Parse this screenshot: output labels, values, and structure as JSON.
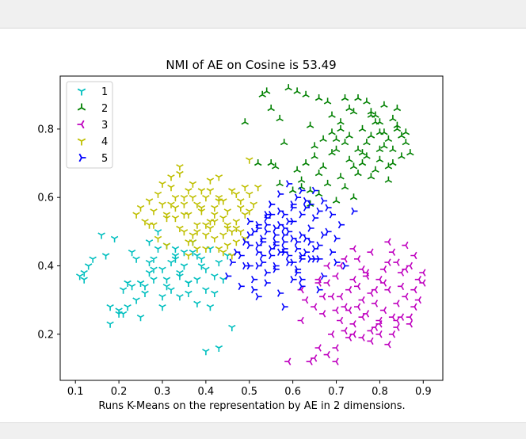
{
  "chart_data": {
    "type": "scatter",
    "title": "NMI of AE on Cosine is 53.49",
    "xlabel": "Runs K-Means on the representation by AE in 2 dimensions.",
    "ylabel": "",
    "xlim": [
      0.065,
      0.945
    ],
    "ylim": [
      0.065,
      0.955
    ],
    "xticks": [
      "0.1",
      "0.2",
      "0.3",
      "0.4",
      "0.5",
      "0.6",
      "0.7",
      "0.8",
      "0.9"
    ],
    "yticks": [
      "0.2",
      "0.4",
      "0.6",
      "0.8"
    ],
    "grid": false,
    "legend": "top-left",
    "series": [
      {
        "name": "1",
        "color": "#00bfbf",
        "marker": "tri_down",
        "x": [
          0.11,
          0.12,
          0.13,
          0.14,
          0.16,
          0.17,
          0.19,
          0.12,
          0.18,
          0.2,
          0.21,
          0.22,
          0.23,
          0.24,
          0.25,
          0.26,
          0.27,
          0.28,
          0.29,
          0.3,
          0.31,
          0.32,
          0.33,
          0.34,
          0.35,
          0.36,
          0.37,
          0.38,
          0.39,
          0.4,
          0.41,
          0.42,
          0.43,
          0.45,
          0.21,
          0.22,
          0.24,
          0.26,
          0.28,
          0.3,
          0.32,
          0.34,
          0.36,
          0.38,
          0.4,
          0.42,
          0.44,
          0.4,
          0.43,
          0.46,
          0.18,
          0.2,
          0.23,
          0.27,
          0.29,
          0.31,
          0.33,
          0.35,
          0.37,
          0.39,
          0.25,
          0.28,
          0.31,
          0.34,
          0.41,
          0.36,
          0.3,
          0.27,
          0.33,
          0.38
        ],
        "y": [
          0.37,
          0.38,
          0.4,
          0.42,
          0.49,
          0.43,
          0.48,
          0.36,
          0.23,
          0.27,
          0.26,
          0.28,
          0.44,
          0.42,
          0.25,
          0.34,
          0.47,
          0.42,
          0.45,
          0.39,
          0.36,
          0.41,
          0.43,
          0.38,
          0.4,
          0.35,
          0.44,
          0.36,
          0.42,
          0.39,
          0.45,
          0.37,
          0.41,
          0.43,
          0.33,
          0.35,
          0.3,
          0.32,
          0.36,
          0.28,
          0.33,
          0.31,
          0.35,
          0.29,
          0.33,
          0.32,
          0.36,
          0.15,
          0.16,
          0.22,
          0.28,
          0.26,
          0.34,
          0.38,
          0.5,
          0.46,
          0.42,
          0.44,
          0.47,
          0.4,
          0.35,
          0.39,
          0.34,
          0.37,
          0.28,
          0.32,
          0.31,
          0.41,
          0.45,
          0.43
        ]
      },
      {
        "name": "2",
        "color": "#008000",
        "marker": "tri_up",
        "x": [
          0.49,
          0.53,
          0.54,
          0.55,
          0.57,
          0.59,
          0.61,
          0.63,
          0.64,
          0.66,
          0.68,
          0.69,
          0.7,
          0.71,
          0.72,
          0.73,
          0.74,
          0.75,
          0.76,
          0.77,
          0.78,
          0.79,
          0.8,
          0.81,
          0.82,
          0.83,
          0.84,
          0.85,
          0.86,
          0.87,
          0.63,
          0.65,
          0.67,
          0.69,
          0.71,
          0.73,
          0.75,
          0.77,
          0.79,
          0.81,
          0.83,
          0.85,
          0.6,
          0.62,
          0.64,
          0.66,
          0.68,
          0.7,
          0.72,
          0.74,
          0.76,
          0.78,
          0.8,
          0.82,
          0.84,
          0.58,
          0.61,
          0.65,
          0.67,
          0.71,
          0.73,
          0.77,
          0.79,
          0.81,
          0.83,
          0.86,
          0.74,
          0.76,
          0.78,
          0.8,
          0.82,
          0.69,
          0.72,
          0.55,
          0.57,
          0.52,
          0.56,
          0.62,
          0.66,
          0.75,
          0.78,
          0.84,
          0.8,
          0.7,
          0.64
        ],
        "y": [
          0.82,
          0.9,
          0.91,
          0.86,
          0.83,
          0.92,
          0.91,
          0.9,
          0.81,
          0.89,
          0.88,
          0.79,
          0.77,
          0.82,
          0.89,
          0.78,
          0.85,
          0.74,
          0.8,
          0.76,
          0.84,
          0.82,
          0.71,
          0.79,
          0.77,
          0.74,
          0.8,
          0.72,
          0.76,
          0.73,
          0.7,
          0.75,
          0.69,
          0.73,
          0.66,
          0.71,
          0.67,
          0.72,
          0.68,
          0.75,
          0.7,
          0.78,
          0.62,
          0.65,
          0.58,
          0.61,
          0.64,
          0.59,
          0.63,
          0.6,
          0.7,
          0.66,
          0.74,
          0.69,
          0.81,
          0.76,
          0.68,
          0.72,
          0.77,
          0.8,
          0.86,
          0.88,
          0.84,
          0.87,
          0.83,
          0.79,
          0.69,
          0.73,
          0.78,
          0.82,
          0.65,
          0.84,
          0.76,
          0.7,
          0.64,
          0.7,
          0.69,
          0.63,
          0.67,
          0.89,
          0.85,
          0.86,
          0.79,
          0.74,
          0.62
        ]
      },
      {
        "name": "3",
        "color": "#bf00bf",
        "marker": "tri_left",
        "x": [
          0.59,
          0.62,
          0.64,
          0.65,
          0.66,
          0.67,
          0.68,
          0.69,
          0.7,
          0.71,
          0.72,
          0.73,
          0.74,
          0.75,
          0.76,
          0.77,
          0.78,
          0.79,
          0.8,
          0.81,
          0.82,
          0.83,
          0.84,
          0.85,
          0.86,
          0.87,
          0.88,
          0.89,
          0.9,
          0.66,
          0.68,
          0.7,
          0.72,
          0.74,
          0.76,
          0.78,
          0.8,
          0.82,
          0.84,
          0.86,
          0.88,
          0.67,
          0.69,
          0.71,
          0.73,
          0.75,
          0.77,
          0.79,
          0.81,
          0.83,
          0.85,
          0.87,
          0.89,
          0.7,
          0.72,
          0.74,
          0.76,
          0.78,
          0.8,
          0.82,
          0.84,
          0.86,
          0.63,
          0.65,
          0.68,
          0.71,
          0.73,
          0.75,
          0.77,
          0.79,
          0.81,
          0.83,
          0.85,
          0.87,
          0.78,
          0.8,
          0.82,
          0.84,
          0.76,
          0.74,
          0.7,
          0.66,
          0.62,
          0.88,
          0.9
        ],
        "y": [
          0.12,
          0.24,
          0.12,
          0.13,
          0.16,
          0.31,
          0.14,
          0.2,
          0.12,
          0.4,
          0.28,
          0.19,
          0.23,
          0.34,
          0.3,
          0.26,
          0.21,
          0.29,
          0.24,
          0.27,
          0.33,
          0.25,
          0.22,
          0.38,
          0.31,
          0.23,
          0.28,
          0.36,
          0.35,
          0.35,
          0.4,
          0.37,
          0.42,
          0.45,
          0.39,
          0.44,
          0.36,
          0.47,
          0.41,
          0.46,
          0.43,
          0.26,
          0.31,
          0.24,
          0.33,
          0.28,
          0.37,
          0.22,
          0.35,
          0.2,
          0.34,
          0.25,
          0.3,
          0.27,
          0.21,
          0.36,
          0.19,
          0.32,
          0.23,
          0.41,
          0.29,
          0.39,
          0.3,
          0.28,
          0.35,
          0.31,
          0.27,
          0.42,
          0.38,
          0.33,
          0.39,
          0.44,
          0.25,
          0.4,
          0.18,
          0.2,
          0.17,
          0.24,
          0.25,
          0.2,
          0.16,
          0.36,
          0.33,
          0.33,
          0.38
        ]
      },
      {
        "name": "4",
        "color": "#bfbf00",
        "marker": "tri_down",
        "x": [
          0.24,
          0.25,
          0.26,
          0.27,
          0.28,
          0.29,
          0.3,
          0.31,
          0.32,
          0.33,
          0.34,
          0.35,
          0.36,
          0.37,
          0.38,
          0.39,
          0.4,
          0.41,
          0.42,
          0.43,
          0.44,
          0.45,
          0.46,
          0.47,
          0.48,
          0.49,
          0.5,
          0.51,
          0.52,
          0.27,
          0.29,
          0.31,
          0.33,
          0.35,
          0.37,
          0.39,
          0.41,
          0.43,
          0.45,
          0.47,
          0.49,
          0.3,
          0.32,
          0.34,
          0.36,
          0.38,
          0.4,
          0.42,
          0.44,
          0.46,
          0.48,
          0.5,
          0.33,
          0.35,
          0.37,
          0.39,
          0.41,
          0.43,
          0.45,
          0.47,
          0.36,
          0.38,
          0.4,
          0.42,
          0.44,
          0.46,
          0.48,
          0.34,
          0.37,
          0.41,
          0.43,
          0.47,
          0.5,
          0.28,
          0.32,
          0.35,
          0.38,
          0.42,
          0.45,
          0.49,
          0.31,
          0.36,
          0.4,
          0.44
        ],
        "y": [
          0.55,
          0.57,
          0.53,
          0.59,
          0.56,
          0.61,
          0.58,
          0.54,
          0.63,
          0.57,
          0.67,
          0.6,
          0.55,
          0.64,
          0.58,
          0.62,
          0.52,
          0.65,
          0.57,
          0.6,
          0.49,
          0.56,
          0.62,
          0.51,
          0.59,
          0.63,
          0.71,
          0.58,
          0.63,
          0.52,
          0.48,
          0.55,
          0.6,
          0.5,
          0.47,
          0.57,
          0.53,
          0.45,
          0.52,
          0.47,
          0.55,
          0.64,
          0.66,
          0.51,
          0.62,
          0.45,
          0.6,
          0.48,
          0.54,
          0.43,
          0.5,
          0.61,
          0.54,
          0.58,
          0.49,
          0.56,
          0.51,
          0.59,
          0.46,
          0.53,
          0.47,
          0.52,
          0.49,
          0.55,
          0.44,
          0.5,
          0.57,
          0.69,
          0.6,
          0.62,
          0.66,
          0.61,
          0.56,
          0.52,
          0.58,
          0.55,
          0.5,
          0.53,
          0.51,
          0.48,
          0.46,
          0.43,
          0.45,
          0.59
        ]
      },
      {
        "name": "5",
        "color": "#0000ff",
        "marker": "tri_right",
        "x": [
          0.45,
          0.46,
          0.47,
          0.48,
          0.49,
          0.5,
          0.51,
          0.52,
          0.53,
          0.54,
          0.55,
          0.56,
          0.57,
          0.58,
          0.59,
          0.6,
          0.61,
          0.62,
          0.63,
          0.64,
          0.65,
          0.66,
          0.67,
          0.68,
          0.69,
          0.7,
          0.71,
          0.72,
          0.48,
          0.5,
          0.52,
          0.54,
          0.56,
          0.58,
          0.6,
          0.62,
          0.64,
          0.66,
          0.68,
          0.49,
          0.51,
          0.53,
          0.55,
          0.57,
          0.59,
          0.61,
          0.63,
          0.65,
          0.67,
          0.5,
          0.52,
          0.54,
          0.56,
          0.58,
          0.6,
          0.62,
          0.64,
          0.66,
          0.51,
          0.53,
          0.55,
          0.57,
          0.59,
          0.61,
          0.63,
          0.65,
          0.52,
          0.54,
          0.56,
          0.58,
          0.6,
          0.62,
          0.53,
          0.55,
          0.57,
          0.59,
          0.61,
          0.5,
          0.52,
          0.54,
          0.56,
          0.58,
          0.6,
          0.62,
          0.64,
          0.58,
          0.62,
          0.66,
          0.7,
          0.74,
          0.55,
          0.57,
          0.59,
          0.61,
          0.63,
          0.65,
          0.67,
          0.69,
          0.52,
          0.54,
          0.56,
          0.58,
          0.6,
          0.62
        ],
        "y": [
          0.37,
          0.41,
          0.44,
          0.34,
          0.47,
          0.4,
          0.36,
          0.51,
          0.43,
          0.38,
          0.55,
          0.46,
          0.32,
          0.49,
          0.41,
          0.53,
          0.45,
          0.36,
          0.48,
          0.51,
          0.42,
          0.46,
          0.37,
          0.5,
          0.44,
          0.48,
          0.52,
          0.4,
          0.43,
          0.49,
          0.46,
          0.52,
          0.39,
          0.44,
          0.41,
          0.55,
          0.47,
          0.42,
          0.57,
          0.4,
          0.33,
          0.47,
          0.43,
          0.56,
          0.5,
          0.38,
          0.44,
          0.54,
          0.49,
          0.46,
          0.52,
          0.35,
          0.49,
          0.45,
          0.58,
          0.49,
          0.42,
          0.56,
          0.5,
          0.41,
          0.58,
          0.44,
          0.53,
          0.47,
          0.59,
          0.45,
          0.31,
          0.55,
          0.4,
          0.51,
          0.36,
          0.62,
          0.48,
          0.45,
          0.52,
          0.43,
          0.39,
          0.53,
          0.4,
          0.5,
          0.47,
          0.55,
          0.48,
          0.43,
          0.58,
          0.28,
          0.34,
          0.33,
          0.41,
          0.56,
          0.58,
          0.61,
          0.64,
          0.6,
          0.57,
          0.62,
          0.59,
          0.55,
          0.44,
          0.54,
          0.51,
          0.47,
          0.57,
          0.42
        ]
      }
    ]
  }
}
